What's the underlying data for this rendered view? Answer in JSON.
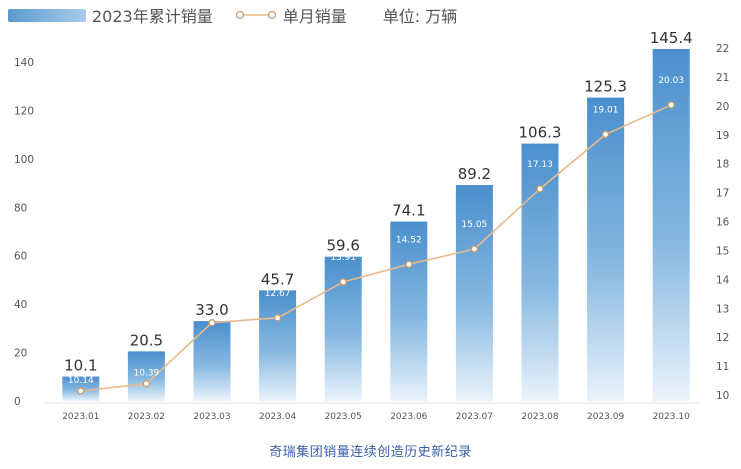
{
  "legend": {
    "bar_label": "2023年累计销量",
    "line_label": "单月销量",
    "unit": "单位: 万辆"
  },
  "caption": "奇瑞集团销量连续创造历史新纪录",
  "colors": {
    "bar_top": "#4a8fcd",
    "bar_bottom": "#eaf3fb",
    "line": "#e8b98a",
    "marker_fill": "#ffffff",
    "marker_stroke": "#c99a6a",
    "axis_text": "#555555",
    "value_text": "#333333",
    "inner_label": "#ffffff"
  },
  "chart_data": {
    "type": "bar",
    "categories": [
      "2023.01",
      "2023.02",
      "2023.03",
      "2023.04",
      "2023.05",
      "2023.06",
      "2023.07",
      "2023.08",
      "2023.09",
      "2023.10"
    ],
    "series": [
      {
        "name": "2023年累计销量",
        "type": "bar",
        "axis": "left",
        "values": [
          10.1,
          20.5,
          33.0,
          45.7,
          59.6,
          74.1,
          89.2,
          106.3,
          125.3,
          145.4
        ],
        "labels": [
          "10.1",
          "20.5",
          "33.0",
          "45.7",
          "59.6",
          "74.1",
          "89.2",
          "106.3",
          "125.3",
          "145.4"
        ]
      },
      {
        "name": "单月销量",
        "type": "line",
        "axis": "right",
        "values": [
          10.14,
          10.39,
          12.5,
          12.67,
          13.91,
          14.52,
          15.05,
          17.13,
          19.01,
          20.03
        ],
        "labels": [
          "10.14",
          "10.39",
          "12.50",
          "12.67",
          "13.91",
          "14.52",
          "15.05",
          "17.13",
          "19.01",
          "20.03"
        ]
      }
    ],
    "y_left": {
      "min": 0,
      "max": 140,
      "ticks": [
        "0",
        "20",
        "40",
        "60",
        "80",
        "100",
        "120",
        "140"
      ]
    },
    "y_right": {
      "min": 10,
      "max": 22,
      "ticks": [
        "10",
        "11",
        "12",
        "13",
        "14",
        "15",
        "16",
        "17",
        "18",
        "19",
        "20",
        "21",
        "22"
      ]
    },
    "grid": false,
    "legend_position": "top-left"
  }
}
